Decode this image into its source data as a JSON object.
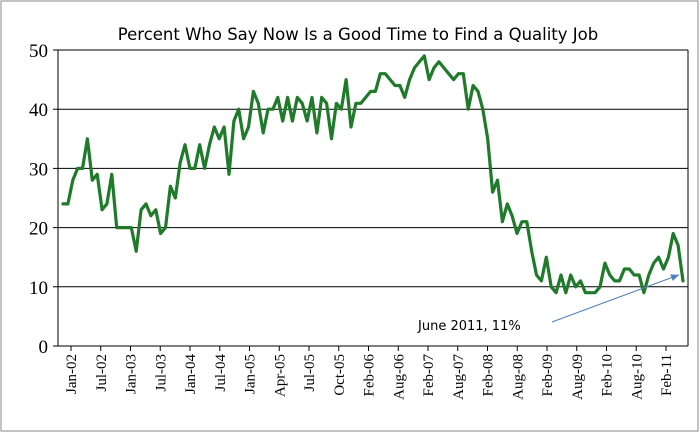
{
  "chart_data": {
    "type": "line",
    "title": "Percent Who Say Now Is a Good Time to Find a Quality Job",
    "xlabel": "",
    "ylabel": "",
    "ylim": [
      0,
      50
    ],
    "yticks": [
      0,
      10,
      20,
      30,
      40,
      50
    ],
    "grid": true,
    "legend": "none",
    "line_color": "#1f7a2a",
    "x_tick_labels": [
      "Jan-02",
      "Jul-02",
      "Jan-03",
      "Jul-03",
      "Jan-04",
      "Jul-04",
      "Jan-05",
      "Apr-05",
      "Jul-05",
      "Oct-05",
      "Feb-06",
      "Aug-06",
      "Feb-07",
      "Aug-07",
      "Feb-08",
      "Aug-08",
      "Feb-09",
      "Aug-09",
      "Feb-10",
      "Aug-10",
      "Feb-11"
    ],
    "annotation": {
      "text": "June 2011, 11%",
      "x": "Jun-11",
      "y": 11,
      "arrow_color": "#4f7fbf"
    },
    "series": [
      {
        "values": [
          24,
          24,
          28,
          30,
          30,
          35,
          28,
          29,
          23,
          24,
          29,
          20,
          20,
          20,
          20,
          16,
          23,
          24,
          22,
          23,
          19,
          20,
          27,
          25,
          31,
          34,
          30,
          30,
          34,
          30,
          34,
          37,
          35,
          37,
          29,
          38,
          40,
          35,
          37,
          43,
          41,
          36,
          40,
          40,
          42,
          38,
          42,
          38,
          42,
          41,
          38,
          42,
          36,
          42,
          41,
          35,
          41,
          40,
          45,
          37,
          41,
          41,
          42,
          43,
          43,
          46,
          46,
          45,
          44,
          44,
          42,
          45,
          47,
          48,
          49,
          45,
          47,
          48,
          47,
          46,
          45,
          46,
          46,
          40,
          44,
          43,
          40,
          35,
          26,
          28,
          21,
          24,
          22,
          19,
          21,
          21,
          16,
          12,
          11,
          15,
          10,
          9,
          12,
          9,
          12,
          10,
          11,
          9,
          9,
          9,
          10,
          14,
          12,
          11,
          11,
          13,
          13,
          12,
          12,
          9,
          12,
          14,
          15,
          13,
          15,
          19,
          17,
          11
        ]
      }
    ]
  }
}
